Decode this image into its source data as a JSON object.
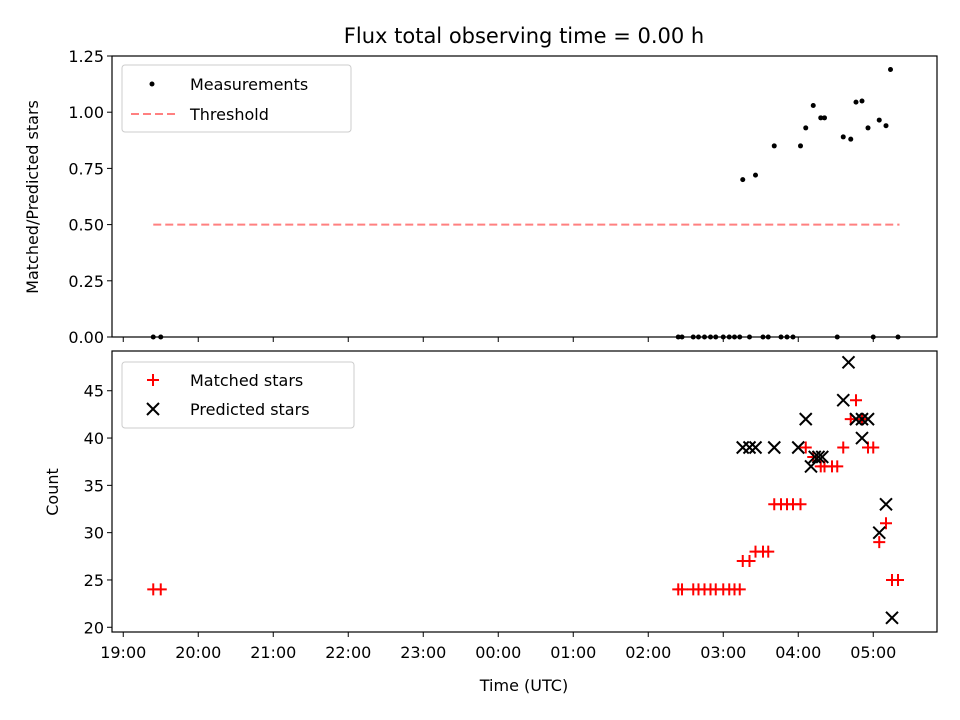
{
  "chart_data": [
    {
      "type": "scatter",
      "title": "Flux total observing time = 0.00 h",
      "xlabel": "",
      "ylabel": "Matched/Predicted stars",
      "xlim": [
        18.85,
        29.85
      ],
      "ylim": [
        0,
        1.25
      ],
      "yticks": [
        0.0,
        0.25,
        0.5,
        0.75,
        1.0,
        1.25
      ],
      "ytick_labels": [
        "0.00",
        "0.25",
        "0.50",
        "0.75",
        "1.00",
        "1.25"
      ],
      "legend_position": "top-left",
      "series": [
        {
          "name": "Measurements",
          "color": "#000000",
          "marker": "dot",
          "x": [
            19.4,
            19.5,
            26.4,
            26.45,
            26.6,
            26.67,
            26.75,
            26.83,
            26.9,
            27.0,
            27.08,
            27.15,
            27.22,
            27.26,
            27.35,
            27.43,
            27.53,
            27.6,
            27.68,
            27.77,
            27.85,
            27.93,
            28.03,
            28.1,
            28.2,
            28.3,
            28.35,
            28.52,
            28.6,
            28.7,
            28.77,
            28.85,
            28.93,
            29.0,
            29.08,
            29.17,
            29.23,
            29.33
          ],
          "y": [
            0,
            0,
            0,
            0,
            0,
            0,
            0,
            0,
            0,
            0,
            0,
            0,
            0,
            0.7,
            0,
            0.72,
            0,
            0,
            0.85,
            0,
            0,
            0,
            0.85,
            0.93,
            1.03,
            0.975,
            0.975,
            0,
            0.89,
            0.88,
            1.045,
            1.05,
            0.93,
            0,
            0.965,
            0.94,
            1.19,
            0
          ]
        },
        {
          "name": "Threshold",
          "color": "#ff8080",
          "style": "dashed",
          "x": [
            19.4,
            29.35
          ],
          "y": [
            0.5,
            0.5
          ]
        }
      ]
    },
    {
      "type": "scatter",
      "title": "",
      "xlabel": "Time (UTC)",
      "ylabel": "Count",
      "xlim": [
        18.85,
        29.85
      ],
      "ylim": [
        19.5,
        49.2
      ],
      "yticks": [
        20,
        25,
        30,
        35,
        40,
        45
      ],
      "ytick_labels": [
        "20",
        "25",
        "30",
        "35",
        "40",
        "45"
      ],
      "xticks": [
        19,
        20,
        21,
        22,
        23,
        24,
        25,
        26,
        27,
        28,
        29
      ],
      "xtick_labels": [
        "19:00",
        "20:00",
        "21:00",
        "22:00",
        "23:00",
        "00:00",
        "01:00",
        "02:00",
        "03:00",
        "04:00",
        "05:00"
      ],
      "legend_position": "top-left",
      "series": [
        {
          "name": "Matched stars",
          "color": "#ff0000",
          "marker": "plus",
          "x": [
            19.4,
            19.5,
            26.4,
            26.45,
            26.6,
            26.67,
            26.75,
            26.83,
            26.9,
            27.0,
            27.08,
            27.15,
            27.22,
            27.26,
            27.35,
            27.43,
            27.53,
            27.6,
            27.68,
            27.77,
            27.85,
            27.93,
            28.03,
            28.1,
            28.2,
            28.3,
            28.35,
            28.45,
            28.52,
            28.6,
            28.7,
            28.77,
            28.85,
            28.93,
            29.0,
            29.08,
            29.17,
            29.25,
            29.33
          ],
          "y": [
            24,
            24,
            24,
            24,
            24,
            24,
            24,
            24,
            24,
            24,
            24,
            24,
            24,
            27,
            27,
            28,
            28,
            28,
            33,
            33,
            33,
            33,
            33,
            39,
            38,
            37,
            37,
            37,
            37,
            39,
            42,
            44,
            42,
            39,
            39,
            29,
            31,
            25,
            25
          ]
        },
        {
          "name": "Predicted stars",
          "color": "#000000",
          "marker": "x",
          "x": [
            27.26,
            27.35,
            27.43,
            27.68,
            28.0,
            28.1,
            28.17,
            28.22,
            28.27,
            28.32,
            28.6,
            28.67,
            28.77,
            28.85,
            28.85,
            28.93,
            29.08,
            29.17,
            29.25
          ],
          "y": [
            39,
            39,
            39,
            39,
            39,
            42,
            37,
            38,
            38,
            38,
            44,
            48,
            42,
            42,
            40,
            42,
            30,
            33,
            21
          ]
        }
      ]
    }
  ]
}
